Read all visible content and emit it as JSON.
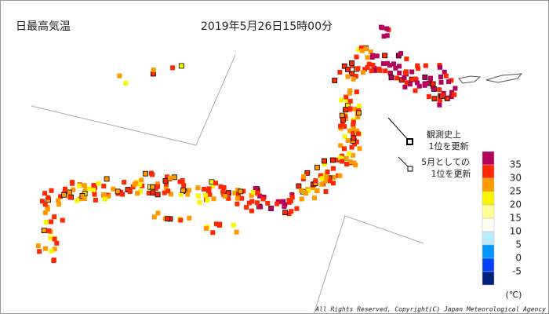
{
  "header": {
    "title": "日最高気温",
    "datetime": "2019年5月26日15時00分"
  },
  "record_legend": [
    {
      "lines": [
        "観測史上",
        "1位を更新"
      ]
    },
    {
      "lines": [
        "5月としての",
        "1位を更新"
      ]
    }
  ],
  "scale": {
    "colors": [
      "#b4005a",
      "#ff2800",
      "#ff9900",
      "#faf500",
      "#ffff96",
      "#fffff0",
      "#b9ebff",
      "#0096ff",
      "#0041ff",
      "#002080"
    ],
    "labels": [
      "35",
      "30",
      "25",
      "20",
      "15",
      "10",
      "5",
      "0",
      "-5"
    ],
    "unit": "(℃)"
  },
  "footer": {
    "copyright": "All Rights Reserved, Copyright(C) Japan Meteorological Agency"
  }
}
